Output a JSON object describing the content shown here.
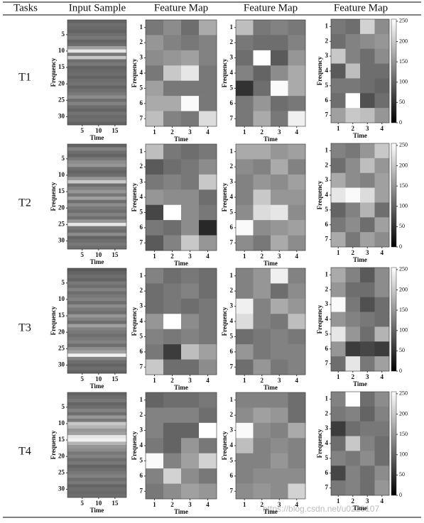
{
  "table": {
    "headers": [
      "Tasks",
      "Input Sample",
      "Feature Map",
      "Feature Map",
      "Feature Map"
    ],
    "tasks": [
      "T1",
      "T2",
      "T3",
      "T4"
    ]
  },
  "watermark": "https://blog.csdn.net/u0228107",
  "chart_data": [
    {
      "type": "stripes",
      "xlabel": "Time",
      "ylabel": "Frequency",
      "xlim": [
        0.5,
        18.5
      ],
      "ylim": [
        0.5,
        32.5
      ],
      "xticks": [
        5,
        10,
        15
      ],
      "yticks": [
        5,
        10,
        15,
        20,
        25,
        30
      ],
      "zlim": [
        0,
        255
      ],
      "values": [
        100,
        110,
        105,
        100,
        110,
        120,
        100,
        110,
        160,
        230,
        120,
        200,
        110,
        120,
        100,
        105,
        110,
        100,
        110,
        115,
        100,
        110,
        120,
        140,
        110,
        130,
        110,
        100,
        115,
        105,
        110,
        100
      ]
    },
    {
      "type": "heatmap",
      "xlabel": "Time",
      "ylabel": "Frequency",
      "xlim": [
        0.5,
        4.5
      ],
      "ylim": [
        0.5,
        7.5
      ],
      "xticks": [
        1,
        2,
        3,
        4
      ],
      "yticks": [
        1,
        2,
        3,
        4,
        5,
        6,
        7
      ],
      "zlim": [
        0,
        255
      ],
      "values": [
        [
          120,
          140,
          110,
          170
        ],
        [
          150,
          130,
          120,
          130
        ],
        [
          140,
          150,
          160,
          130
        ],
        [
          120,
          200,
          230,
          120
        ],
        [
          160,
          120,
          120,
          120
        ],
        [
          170,
          170,
          250,
          120
        ],
        [
          190,
          130,
          120,
          220
        ]
      ]
    },
    {
      "type": "heatmap",
      "xlabel": "Time",
      "ylabel": "Frequency",
      "xlim": [
        0.5,
        4.5
      ],
      "ylim": [
        0.5,
        7.5
      ],
      "xticks": [
        1,
        2,
        3,
        4
      ],
      "yticks": [
        1,
        2,
        3,
        4,
        5,
        6,
        7
      ],
      "zlim": [
        0,
        255
      ],
      "values": [
        [
          190,
          120,
          130,
          120
        ],
        [
          120,
          110,
          110,
          130
        ],
        [
          110,
          255,
          90,
          150
        ],
        [
          130,
          100,
          140,
          170
        ],
        [
          50,
          110,
          250,
          170
        ],
        [
          120,
          150,
          110,
          120
        ],
        [
          120,
          170,
          120,
          240
        ]
      ]
    },
    {
      "type": "heatmap",
      "xlabel": "Time",
      "ylabel": "Frequency",
      "xlim": [
        0.5,
        4.5
      ],
      "ylim": [
        0.5,
        7.5
      ],
      "xticks": [
        1,
        2,
        3,
        4
      ],
      "yticks": [
        1,
        2,
        3,
        4,
        5,
        6,
        7
      ],
      "zlim": [
        0,
        255
      ],
      "colorbar": {
        "ticks": [
          0,
          50,
          100,
          150,
          200,
          250
        ]
      },
      "values": [
        [
          120,
          110,
          210,
          140
        ],
        [
          110,
          130,
          140,
          150
        ],
        [
          200,
          130,
          110,
          140
        ],
        [
          90,
          190,
          110,
          110
        ],
        [
          120,
          120,
          110,
          100
        ],
        [
          110,
          255,
          80,
          110
        ],
        [
          160,
          200,
          190,
          150
        ]
      ]
    },
    {
      "type": "stripes",
      "xlabel": "Time",
      "ylabel": "Frequency",
      "xlim": [
        0.5,
        18.5
      ],
      "ylim": [
        0.5,
        32.5
      ],
      "xticks": [
        5,
        10,
        15
      ],
      "yticks": [
        5,
        10,
        15,
        20,
        25,
        30
      ],
      "zlim": [
        0,
        255
      ],
      "values": [
        100,
        130,
        110,
        100,
        120,
        140,
        150,
        110,
        100,
        110,
        150,
        200,
        110,
        130,
        150,
        120,
        160,
        110,
        140,
        120,
        110,
        130,
        110,
        150,
        230,
        120,
        110,
        140,
        100,
        110,
        120,
        110
      ]
    },
    {
      "type": "heatmap",
      "xlabel": "Time",
      "ylabel": "Frequency",
      "xlim": [
        0.5,
        4.5
      ],
      "ylim": [
        0.5,
        7.5
      ],
      "xticks": [
        1,
        2,
        3,
        4
      ],
      "yticks": [
        1,
        2,
        3,
        4,
        5,
        6,
        7
      ],
      "zlim": [
        0,
        255
      ],
      "values": [
        [
          190,
          120,
          110,
          120
        ],
        [
          90,
          110,
          120,
          140
        ],
        [
          120,
          130,
          120,
          200
        ],
        [
          150,
          140,
          140,
          110
        ],
        [
          70,
          255,
          140,
          120
        ],
        [
          120,
          110,
          140,
          40
        ],
        [
          90,
          130,
          200,
          150
        ]
      ]
    },
    {
      "type": "heatmap",
      "xlabel": "Time",
      "ylabel": "Frequency",
      "xlim": [
        0.5,
        4.5
      ],
      "ylim": [
        0.5,
        7.5
      ],
      "xticks": [
        1,
        2,
        3,
        4
      ],
      "yticks": [
        1,
        2,
        3,
        4,
        5,
        6,
        7
      ],
      "zlim": [
        0,
        255
      ],
      "values": [
        [
          170,
          170,
          150,
          160
        ],
        [
          140,
          130,
          170,
          130
        ],
        [
          130,
          150,
          140,
          160
        ],
        [
          130,
          200,
          150,
          150
        ],
        [
          140,
          220,
          230,
          140
        ],
        [
          250,
          140,
          150,
          160
        ],
        [
          140,
          120,
          170,
          140
        ]
      ]
    },
    {
      "type": "heatmap",
      "xlabel": "Time",
      "ylabel": "Frequency",
      "xlim": [
        0.5,
        4.5
      ],
      "ylim": [
        0.5,
        7.5
      ],
      "xticks": [
        1,
        2,
        3,
        4
      ],
      "yticks": [
        1,
        2,
        3,
        4,
        5,
        6,
        7
      ],
      "zlim": [
        0,
        255
      ],
      "colorbar": {
        "ticks": [
          0,
          50,
          100,
          150,
          200,
          250
        ]
      },
      "values": [
        [
          130,
          120,
          150,
          200
        ],
        [
          110,
          140,
          190,
          150
        ],
        [
          170,
          140,
          130,
          160
        ],
        [
          230,
          250,
          220,
          160
        ],
        [
          100,
          130,
          180,
          110
        ],
        [
          120,
          140,
          110,
          160
        ],
        [
          170,
          120,
          160,
          140
        ]
      ]
    },
    {
      "type": "stripes",
      "xlabel": "Time",
      "ylabel": "Frequency",
      "xlim": [
        0.5,
        18.5
      ],
      "ylim": [
        0.5,
        32.5
      ],
      "xticks": [
        5,
        10,
        15
      ],
      "yticks": [
        5,
        10,
        15,
        20,
        25,
        30
      ],
      "zlim": [
        0,
        255
      ],
      "values": [
        90,
        100,
        110,
        100,
        120,
        110,
        130,
        110,
        120,
        130,
        110,
        140,
        120,
        110,
        150,
        130,
        110,
        160,
        130,
        120,
        110,
        120,
        130,
        110,
        140,
        160,
        240,
        130,
        110,
        100,
        110,
        100
      ]
    },
    {
      "type": "heatmap",
      "xlabel": "Time",
      "ylabel": "Frequency",
      "xlim": [
        0.5,
        4.5
      ],
      "ylim": [
        0.5,
        7.5
      ],
      "xticks": [
        1,
        2,
        3,
        4
      ],
      "yticks": [
        1,
        2,
        3,
        4,
        5,
        6,
        7
      ],
      "zlim": [
        0,
        255
      ],
      "values": [
        [
          130,
          110,
          120,
          110
        ],
        [
          110,
          120,
          130,
          110
        ],
        [
          110,
          120,
          110,
          120
        ],
        [
          150,
          255,
          140,
          120
        ],
        [
          130,
          120,
          130,
          120
        ],
        [
          120,
          60,
          190,
          160
        ],
        [
          200,
          110,
          110,
          140
        ]
      ]
    },
    {
      "type": "heatmap",
      "xlabel": "Time",
      "ylabel": "Frequency",
      "xlim": [
        0.5,
        4.5
      ],
      "ylim": [
        0.5,
        7.5
      ],
      "xticks": [
        1,
        2,
        3,
        4
      ],
      "yticks": [
        1,
        2,
        3,
        4,
        5,
        6,
        7
      ],
      "zlim": [
        0,
        255
      ],
      "values": [
        [
          130,
          150,
          240,
          130
        ],
        [
          130,
          150,
          110,
          140
        ],
        [
          240,
          130,
          170,
          150
        ],
        [
          220,
          130,
          120,
          190
        ],
        [
          110,
          120,
          130,
          120
        ],
        [
          150,
          120,
          130,
          130
        ],
        [
          110,
          150,
          120,
          130
        ]
      ]
    },
    {
      "type": "heatmap",
      "xlabel": "Time",
      "ylabel": "Frequency",
      "xlim": [
        0.5,
        4.5
      ],
      "ylim": [
        0.5,
        7.5
      ],
      "xticks": [
        1,
        2,
        3,
        4
      ],
      "yticks": [
        1,
        2,
        3,
        4,
        5,
        6,
        7
      ],
      "zlim": [
        0,
        255
      ],
      "colorbar": {
        "ticks": [
          0,
          50,
          100,
          150,
          200,
          250
        ]
      },
      "values": [
        [
          170,
          130,
          90,
          140
        ],
        [
          150,
          110,
          110,
          140
        ],
        [
          250,
          120,
          80,
          110
        ],
        [
          150,
          130,
          120,
          110
        ],
        [
          230,
          150,
          110,
          180
        ],
        [
          150,
          60,
          70,
          60
        ],
        [
          110,
          230,
          120,
          160
        ]
      ]
    },
    {
      "type": "stripes",
      "xlabel": "Time",
      "ylabel": "Frequency",
      "xlim": [
        0.5,
        18.5
      ],
      "ylim": [
        0.5,
        32.5
      ],
      "xticks": [
        5,
        10,
        15
      ],
      "yticks": [
        5,
        10,
        15,
        20,
        25,
        30
      ],
      "zlim": [
        0,
        255
      ],
      "values": [
        100,
        110,
        120,
        100,
        110,
        130,
        110,
        150,
        120,
        200,
        180,
        150,
        160,
        230,
        240,
        180,
        150,
        140,
        120,
        130,
        110,
        120,
        100,
        110,
        120,
        130,
        110,
        120,
        100,
        110,
        105,
        110
      ]
    },
    {
      "type": "heatmap",
      "xlabel": "Time",
      "ylabel": "Frequency",
      "xlim": [
        0.5,
        4.5
      ],
      "ylim": [
        0.5,
        7.5
      ],
      "xticks": [
        1,
        2,
        3,
        4
      ],
      "yticks": [
        1,
        2,
        3,
        4,
        5,
        6,
        7
      ],
      "zlim": [
        0,
        255
      ],
      "values": [
        [
          100,
          110,
          110,
          120
        ],
        [
          130,
          130,
          130,
          110
        ],
        [
          130,
          100,
          100,
          255
        ],
        [
          120,
          100,
          150,
          120
        ],
        [
          250,
          130,
          160,
          210
        ],
        [
          130,
          210,
          140,
          120
        ],
        [
          120,
          140,
          160,
          150
        ]
      ]
    },
    {
      "type": "heatmap",
      "xlabel": "Time",
      "ylabel": "Frequency",
      "xlim": [
        0.5,
        4.5
      ],
      "ylim": [
        0.5,
        7.5
      ],
      "xticks": [
        1,
        2,
        3,
        4
      ],
      "yticks": [
        1,
        2,
        3,
        4,
        5,
        6,
        7
      ],
      "zlim": [
        0,
        255
      ],
      "values": [
        [
          130,
          130,
          130,
          110
        ],
        [
          140,
          160,
          150,
          110
        ],
        [
          250,
          140,
          130,
          170
        ],
        [
          190,
          130,
          140,
          130
        ],
        [
          130,
          130,
          150,
          130
        ],
        [
          130,
          140,
          140,
          140
        ],
        [
          140,
          150,
          140,
          210
        ]
      ]
    },
    {
      "type": "heatmap",
      "xlabel": "Time",
      "ylabel": "Frequency",
      "xlim": [
        0.5,
        4.5
      ],
      "ylim": [
        0.5,
        7.5
      ],
      "xticks": [
        1,
        2,
        3,
        4
      ],
      "yticks": [
        1,
        2,
        3,
        4,
        5,
        6,
        7
      ],
      "zlim": [
        0,
        255
      ],
      "colorbar": {
        "ticks": [
          0,
          50,
          100,
          150,
          200,
          250
        ]
      },
      "values": [
        [
          130,
          255,
          110,
          140
        ],
        [
          120,
          130,
          100,
          130
        ],
        [
          60,
          110,
          120,
          120
        ],
        [
          110,
          200,
          130,
          110
        ],
        [
          130,
          120,
          140,
          110
        ],
        [
          70,
          130,
          110,
          140
        ],
        [
          120,
          130,
          110,
          150
        ]
      ]
    }
  ]
}
